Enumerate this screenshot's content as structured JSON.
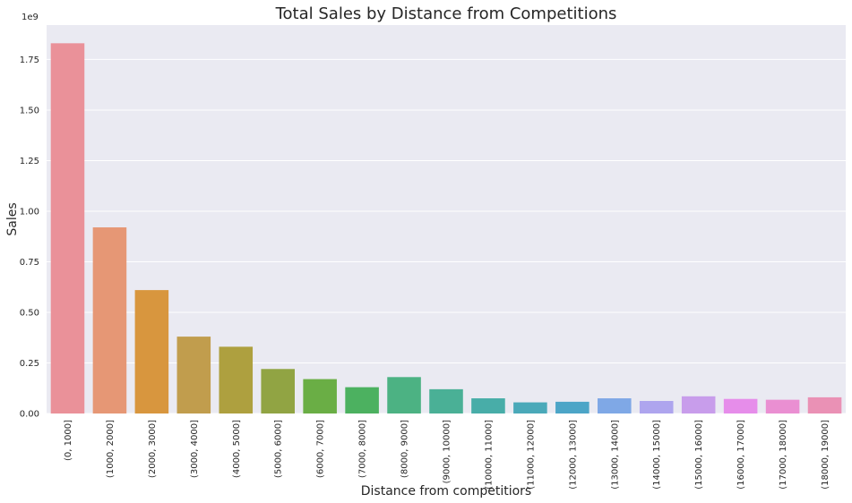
{
  "chart_data": {
    "type": "bar",
    "title": "Total Sales by Distance from Competitions",
    "xlabel": "Distance from competitiors",
    "ylabel": "Sales",
    "y_offset_label": "1e9",
    "ylim": [
      0,
      1.92
    ],
    "yticks": [
      "0.00",
      "0.25",
      "0.50",
      "0.75",
      "1.00",
      "1.25",
      "1.50",
      "1.75"
    ],
    "ytick_values": [
      0,
      0.25,
      0.5,
      0.75,
      1.0,
      1.25,
      1.5,
      1.75
    ],
    "grid": true,
    "categories": [
      "(0, 1000]",
      "(1000, 2000]",
      "(2000, 3000]",
      "(3000, 4000]",
      "(4000, 5000]",
      "(5000, 6000]",
      "(6000, 7000]",
      "(7000, 8000]",
      "(8000, 9000]",
      "(9000, 10000]",
      "(10000, 11000]",
      "(11000, 12000]",
      "(12000, 13000]",
      "(13000, 14000]",
      "(14000, 15000]",
      "(15000, 16000]",
      "(16000, 17000]",
      "(17000, 18000]",
      "(18000, 19000]"
    ],
    "values": [
      1.83,
      0.92,
      0.61,
      0.38,
      0.33,
      0.22,
      0.17,
      0.13,
      0.18,
      0.12,
      0.075,
      0.055,
      0.058,
      0.075,
      0.062,
      0.085,
      0.072,
      0.068,
      0.08
    ],
    "colors": [
      "#ea9199",
      "#e69775",
      "#d8963e",
      "#c19d4d",
      "#aea03f",
      "#91a443",
      "#6aae45",
      "#4cb160",
      "#4cb283",
      "#4ab096",
      "#48ada8",
      "#4aa9b9",
      "#4ca5c7",
      "#7fa8e6",
      "#aea5ee",
      "#c89deb",
      "#e68dea",
      "#ea8fd2",
      "#ea91b5"
    ]
  }
}
